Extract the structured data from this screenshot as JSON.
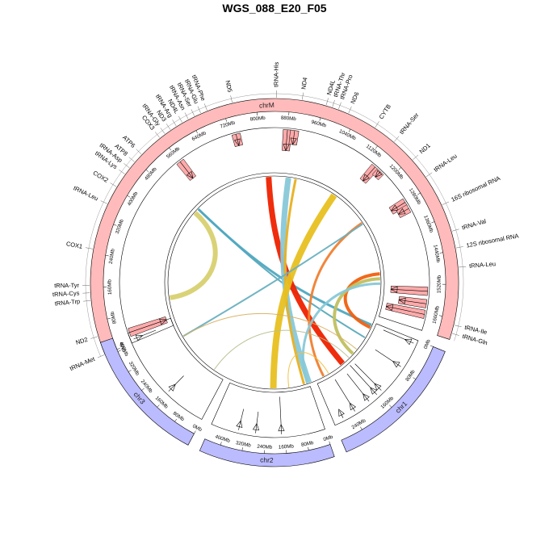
{
  "title": "WGS_088_E20_F05",
  "chromosomes": [
    {
      "name": "chrM",
      "color": "#ffbbbb",
      "span": [
        0,
        1650
      ]
    },
    {
      "name": "chr1",
      "color": "#bbbbff",
      "span": [
        0,
        290
      ]
    },
    {
      "name": "chr2",
      "color": "#bbbbff",
      "span": [
        0,
        460
      ]
    },
    {
      "name": "chr3",
      "color": "#bbbbff",
      "span": [
        0,
        450
      ]
    }
  ],
  "ticks": {
    "chrM": [
      "0Mb",
      "80Mb",
      "160Mb",
      "240Mb",
      "320Mb",
      "400Mb",
      "480Mb",
      "560Mb",
      "640Mb",
      "720Mb",
      "800Mb",
      "880Mb",
      "960Mb",
      "1040Mb",
      "1120Mb",
      "1200Mb",
      "1280Mb",
      "1360Mb",
      "1440Mb",
      "1520Mb",
      "1600Mb"
    ],
    "chr1": [
      "0Mb",
      "80Mb",
      "160Mb",
      "240Mb"
    ],
    "chr2": [
      "0Mb",
      "80Mb",
      "160Mb",
      "240Mb",
      "320Mb",
      "400Mb"
    ],
    "chr3": [
      "0Mb",
      "80Mb",
      "160Mb",
      "240Mb",
      "320Mb",
      "400Mb"
    ]
  },
  "genes": [
    {
      "name": "tRNA-Met",
      "pos": 0
    },
    {
      "name": "ND2",
      "pos": 45
    },
    {
      "name": "tRNA-Trp",
      "pos": 130
    },
    {
      "name": "tRNA-Cys",
      "pos": 148
    },
    {
      "name": "tRNA-Tyr",
      "pos": 165
    },
    {
      "name": "COX1",
      "pos": 250
    },
    {
      "name": "tRNA-Leu",
      "pos": 360
    },
    {
      "name": "COX2",
      "pos": 405
    },
    {
      "name": "tRNA-Lys",
      "pos": 440
    },
    {
      "name": "tRNA-Asp",
      "pos": 458
    },
    {
      "name": "ATP8",
      "pos": 476
    },
    {
      "name": "ATP6",
      "pos": 500
    },
    {
      "name": "COX3",
      "pos": 557
    },
    {
      "name": "tRNA-Gly",
      "pos": 572
    },
    {
      "name": "ND3",
      "pos": 588
    },
    {
      "name": "tRNA-Arg",
      "pos": 604
    },
    {
      "name": "ND4L",
      "pos": 620
    },
    {
      "name": "tRNA-Asn",
      "pos": 636
    },
    {
      "name": "tRNA-Ser",
      "pos": 652
    },
    {
      "name": "tRNA-Glu",
      "pos": 668
    },
    {
      "name": "tRNA-Phe",
      "pos": 684
    },
    {
      "name": "ND5",
      "pos": 745
    },
    {
      "name": "tRNA-His",
      "pos": 848
    },
    {
      "name": "ND4",
      "pos": 908
    },
    {
      "name": "ND4L",
      "pos": 965
    },
    {
      "name": "tRNA-Thr",
      "pos": 980
    },
    {
      "name": "tRNA-Pro",
      "pos": 995
    },
    {
      "name": "ND6",
      "pos": 1020
    },
    {
      "name": "CYTB",
      "pos": 1090
    },
    {
      "name": "tRNA-Ser",
      "pos": 1145
    },
    {
      "name": "ND1",
      "pos": 1205
    },
    {
      "name": "tRNA-Leu",
      "pos": 1255
    },
    {
      "name": "16S ribosomal RNA",
      "pos": 1330
    },
    {
      "name": "tRNA-Val",
      "pos": 1395
    },
    {
      "name": "12S ribosomal RNA",
      "pos": 1435
    },
    {
      "name": "tRNA-Leu",
      "pos": 1480
    },
    {
      "name": "tRNA-Ile",
      "pos": 1615
    },
    {
      "name": "tRNA-Gln",
      "pos": 1635
    }
  ],
  "boxes": [
    {
      "chr": "chrM",
      "pos": 30,
      "level": 0.1
    },
    {
      "chr": "chrM",
      "pos": 560,
      "level": 0.5
    },
    {
      "chr": "chrM",
      "pos": 735,
      "level": 0.7
    },
    {
      "chr": "chrM",
      "pos": 880,
      "level": 0.5
    },
    {
      "chr": "chrM",
      "pos": 900,
      "level": 0.65
    },
    {
      "chr": "chrM",
      "pos": 1150,
      "level": 0.55
    },
    {
      "chr": "chrM",
      "pos": 1170,
      "level": 0.8
    },
    {
      "chr": "chrM",
      "pos": 1280,
      "level": 0.6
    },
    {
      "chr": "chrM",
      "pos": 1300,
      "level": 0.7
    },
    {
      "chr": "chrM",
      "pos": 1540,
      "level": 0.15
    },
    {
      "chr": "chrM",
      "pos": 1575,
      "level": 0.35
    },
    {
      "chr": "chrM",
      "pos": 1605,
      "level": 0.1
    }
  ],
  "markers": [
    {
      "chr": "chr1",
      "pos": 10,
      "level": 0.8
    },
    {
      "chr": "chr1",
      "pos": 75,
      "level": 0.75
    },
    {
      "chr": "chr1",
      "pos": 150,
      "level": 0.9
    },
    {
      "chr": "chr1",
      "pos": 165,
      "level": 0.95
    },
    {
      "chr": "chr1",
      "pos": 190,
      "level": 0.85
    },
    {
      "chr": "chr1",
      "pos": 232,
      "level": 0.9
    },
    {
      "chr": "chr1",
      "pos": 265,
      "level": 0.25
    },
    {
      "chr": "chr2",
      "pos": 175,
      "level": 0.9
    },
    {
      "chr": "chr2",
      "pos": 280,
      "level": 0.55
    },
    {
      "chr": "chr2",
      "pos": 350,
      "level": 0.55
    },
    {
      "chr": "chr3",
      "pos": 170,
      "level": 0.55
    },
    {
      "chr": "chr3",
      "pos": 420,
      "level": 0.6
    }
  ],
  "links": [
    {
      "from": [
        "chrM",
        480
      ],
      "to": [
        "chrM",
        110
      ],
      "color": "#d8d070",
      "width": 6
    },
    {
      "from": [
        "chrM",
        500
      ],
      "to": [
        "chr1",
        60
      ],
      "color": "#5aaabb",
      "width": 2
    },
    {
      "from": [
        "chrM",
        500
      ],
      "to": [
        "chr1",
        10
      ],
      "color": "#4fa8c0",
      "width": 3
    },
    {
      "from": [
        "chrM",
        820
      ],
      "to": [
        "chr1",
        180
      ],
      "color": "#ee2200",
      "width": 7
    },
    {
      "from": [
        "chrM",
        900
      ],
      "to": [
        "chr2",
        0
      ],
      "color": "#88c8d8",
      "width": 7
    },
    {
      "from": [
        "chrM",
        930
      ],
      "to": [
        "chr2",
        30
      ],
      "color": "#e8b020",
      "width": 3
    },
    {
      "from": [
        "chrM",
        1100
      ],
      "to": [
        "chr2",
        210
      ],
      "color": "#e8c020",
      "width": 8
    },
    {
      "from": [
        "chrM",
        1260
      ],
      "to": [
        "chr1",
        260
      ],
      "color": "#f08030",
      "width": 3
    },
    {
      "from": [
        "chrM",
        1265
      ],
      "to": [
        "chr3",
        330
      ],
      "color": "#6ab0c0",
      "width": 2
    },
    {
      "from": [
        "chrM",
        1480
      ],
      "to": [
        "chr1",
        20
      ],
      "color": "#f06010",
      "width": 4
    },
    {
      "from": [
        "chrM",
        1500
      ],
      "to": [
        "chr1",
        130
      ],
      "color": "#c0c060",
      "width": 4
    },
    {
      "from": [
        "chrM",
        1520
      ],
      "to": [
        "chr2",
        10
      ],
      "color": "#88c8d8",
      "width": 3
    },
    {
      "from": [
        "chr2",
        120
      ],
      "to": [
        "chr1",
        240
      ],
      "color": "#f0c040",
      "width": 1
    },
    {
      "from": [
        "chr3",
        70
      ],
      "to": [
        "chr1",
        150
      ],
      "color": "#b8c090",
      "width": 1
    },
    {
      "from": [
        "chr3",
        330
      ],
      "to": [
        "chr1",
        110
      ],
      "color": "#d8b060",
      "width": 1
    }
  ]
}
